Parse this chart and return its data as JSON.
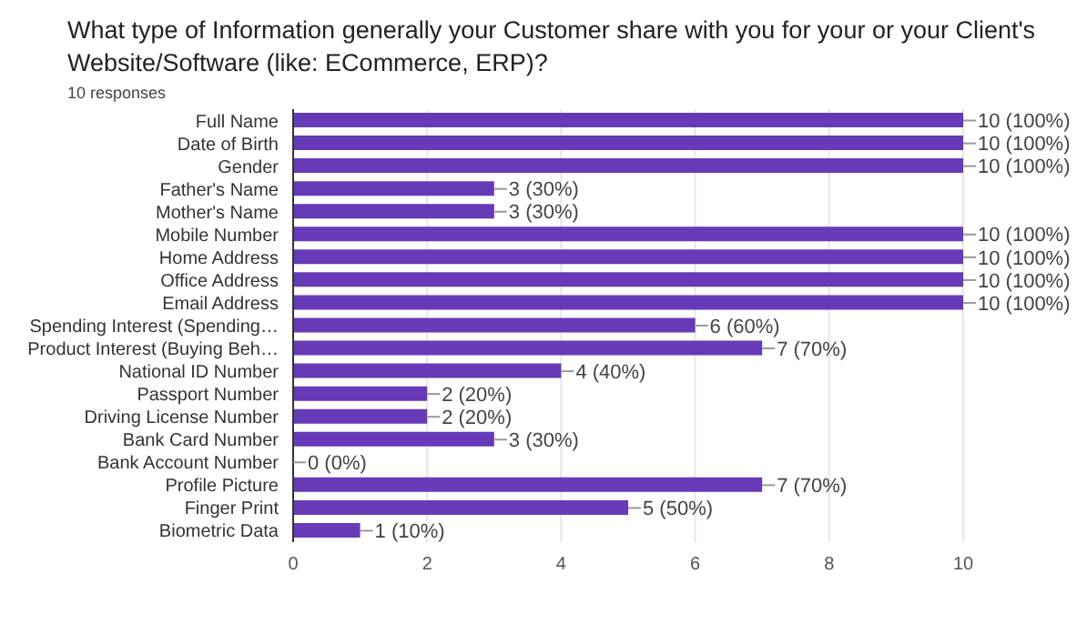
{
  "chart_data": {
    "type": "bar",
    "orientation": "horizontal",
    "title": "What type of Information generally your Customer share with you for your or your Client's Website/Software (like: ECommerce, ERP)?",
    "subtitle": "10 responses",
    "categories": [
      "Full Name",
      "Date of Birth",
      "Gender",
      "Father's Name",
      "Mother's Name",
      "Mobile Number",
      "Home Address",
      "Office Address",
      "Email Address",
      "Spending Interest (Spending…",
      "Product Interest (Buying Beh…",
      "National ID Number",
      "Passport Number",
      "Driving License Number",
      "Bank Card Number",
      "Bank Account Number",
      "Profile Picture",
      "Finger Print",
      "Biometric Data"
    ],
    "values": [
      10,
      10,
      10,
      3,
      3,
      10,
      10,
      10,
      10,
      6,
      7,
      4,
      2,
      2,
      3,
      0,
      7,
      5,
      1
    ],
    "value_labels": [
      "10 (100%)",
      "10 (100%)",
      "10 (100%)",
      "3 (30%)",
      "3 (30%)",
      "10 (100%)",
      "10 (100%)",
      "10 (100%)",
      "10 (100%)",
      "6 (60%)",
      "7 (70%)",
      "4 (40%)",
      "2 (20%)",
      "2 (20%)",
      "3 (30%)",
      "0 (0%)",
      "7 (70%)",
      "5 (50%)",
      "1 (10%)"
    ],
    "color": "#673ab7",
    "xlim": [
      0,
      10
    ],
    "xticks": [
      0,
      2,
      4,
      6,
      8,
      10
    ],
    "grid": "x"
  }
}
